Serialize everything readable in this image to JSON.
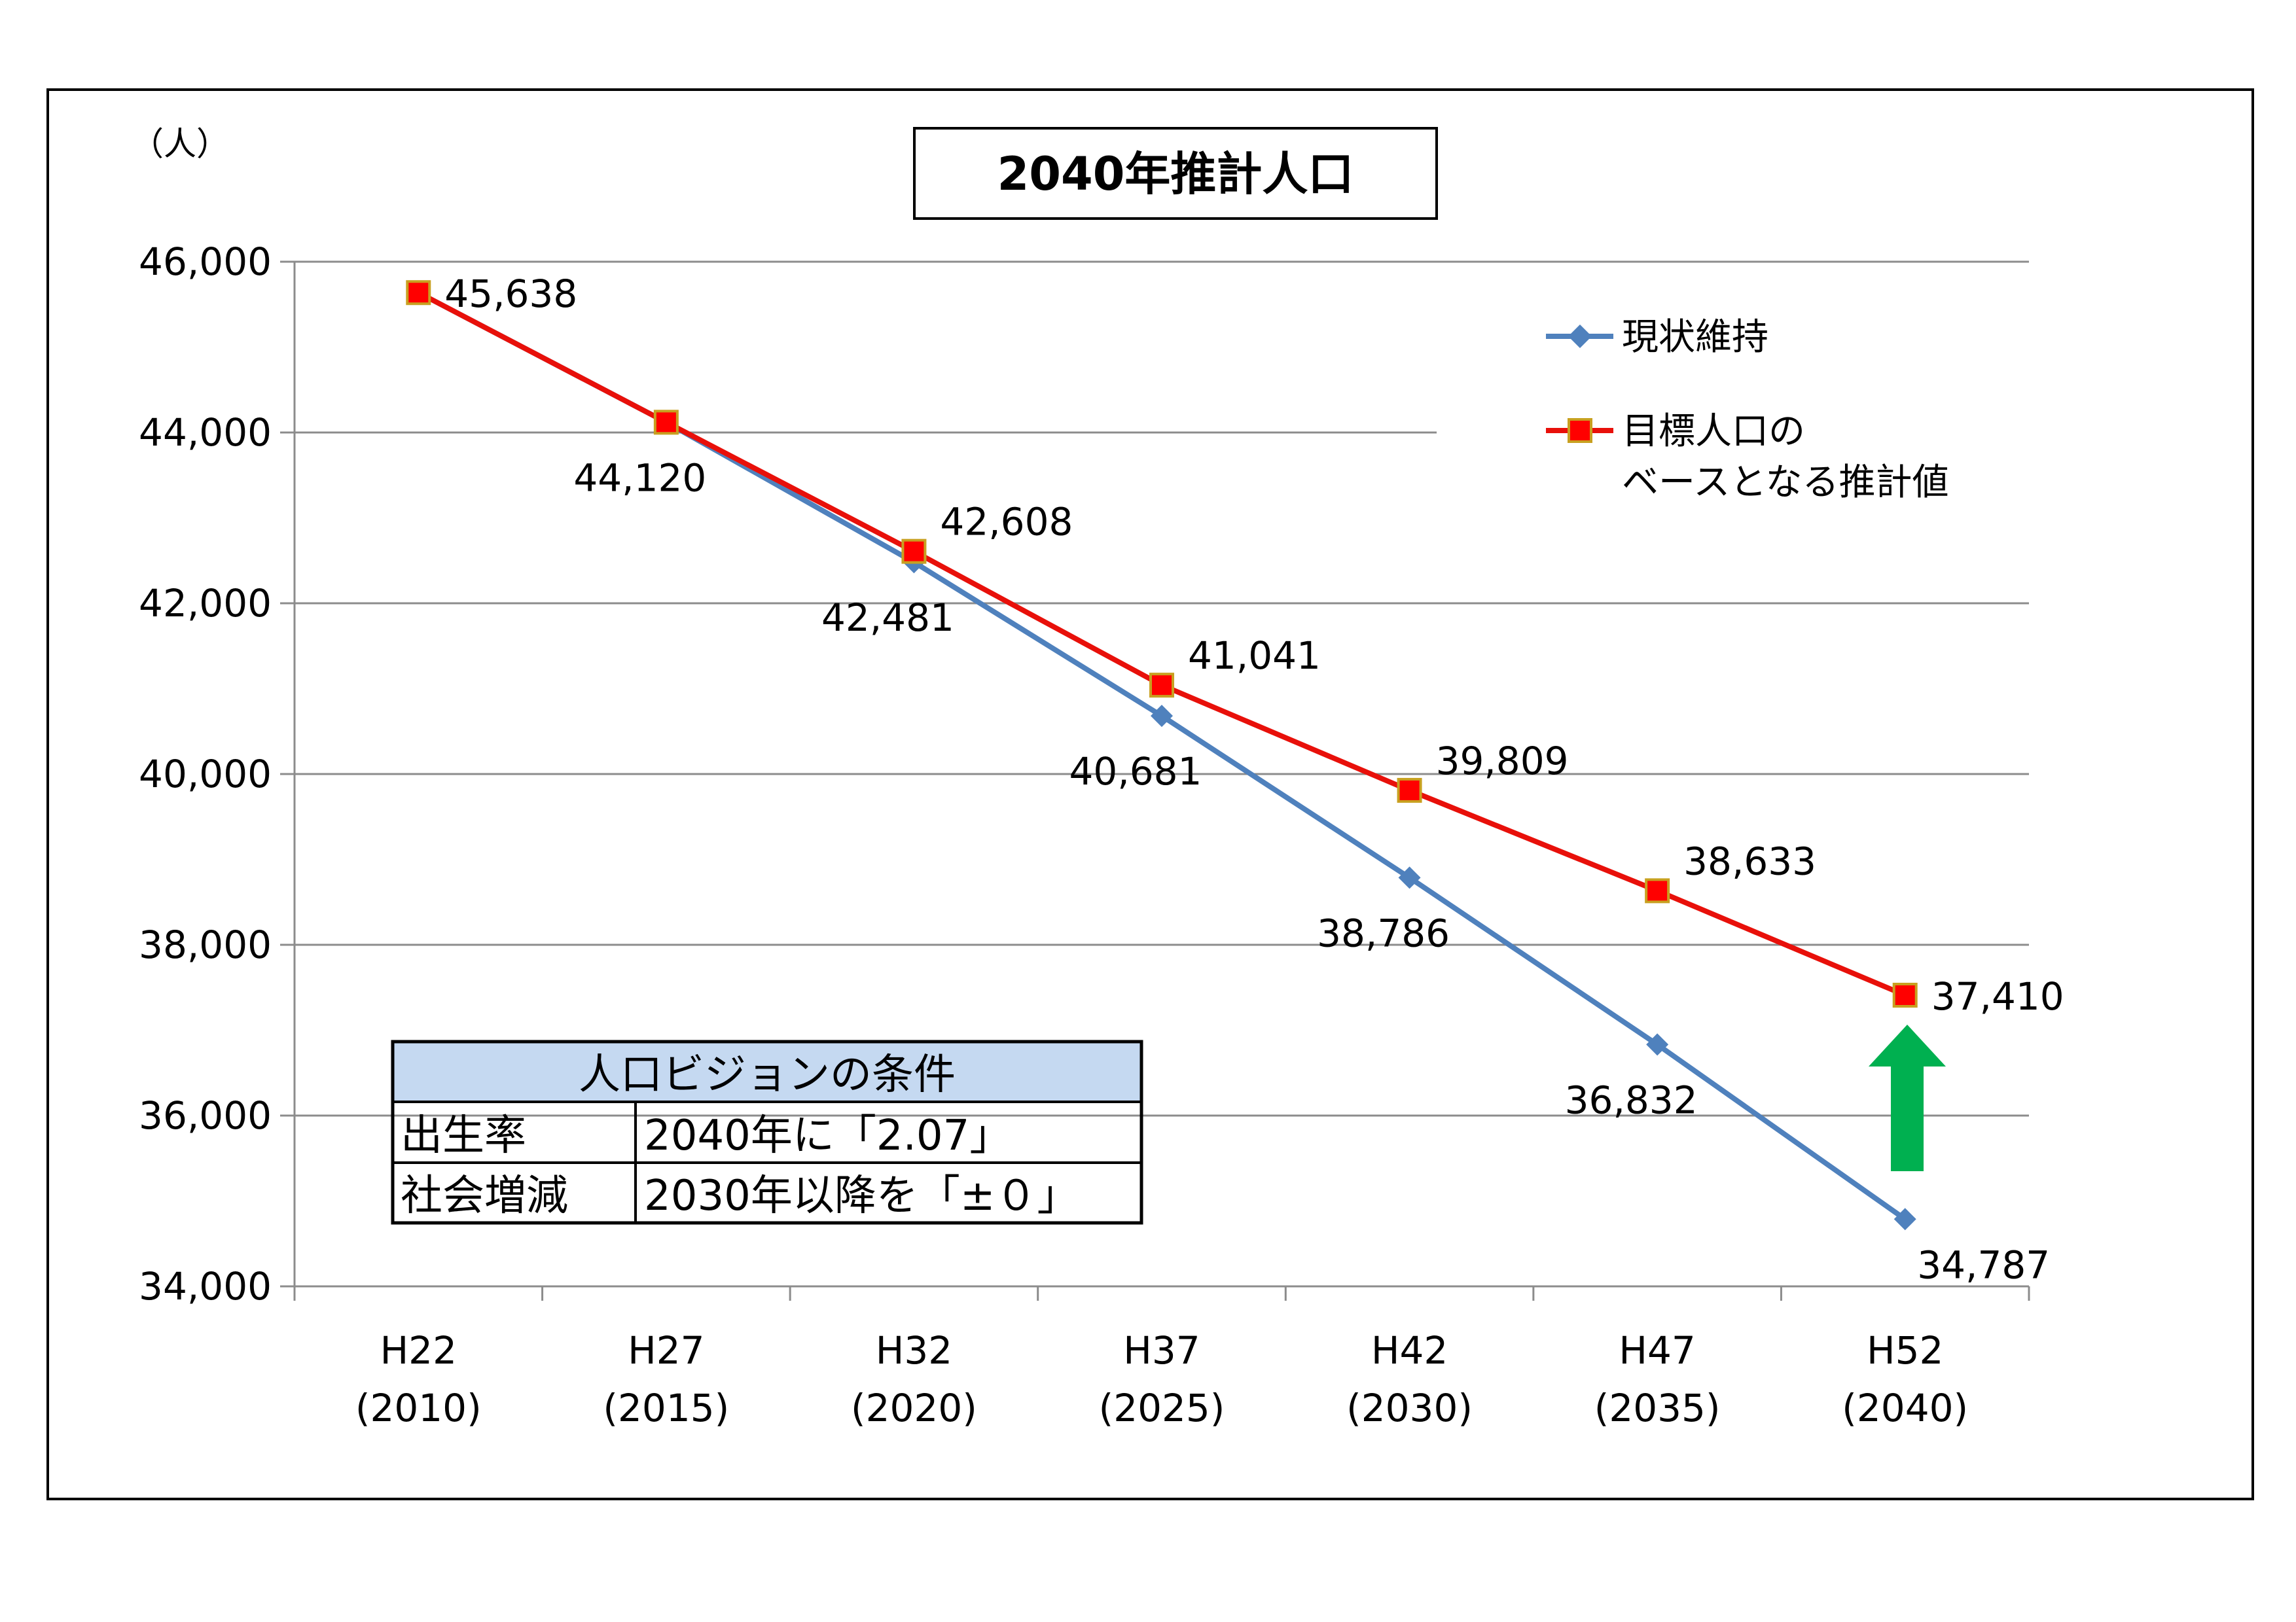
{
  "chart_data": {
    "type": "line",
    "title": "2040年推計人口",
    "ylabel": "（人）",
    "ylim": [
      34000,
      46000
    ],
    "yticks": [
      34000,
      36000,
      38000,
      40000,
      42000,
      44000,
      46000
    ],
    "ytick_labels": [
      "34,000",
      "36,000",
      "38,000",
      "40,000",
      "42,000",
      "44,000",
      "46,000"
    ],
    "categories": [
      [
        "H22",
        "(2010)"
      ],
      [
        "H27",
        "(2015)"
      ],
      [
        "H32",
        "(2020)"
      ],
      [
        "H37",
        "(2025)"
      ],
      [
        "H42",
        "(2030)"
      ],
      [
        "H47",
        "(2035)"
      ],
      [
        "H52",
        "(2040)"
      ]
    ],
    "series": [
      {
        "name": "現状維持",
        "color": "#4F81BD",
        "marker": "diamond",
        "values": [
          45638,
          44120,
          42481,
          40681,
          38786,
          36832,
          34787
        ],
        "labels": [
          "",
          "44,120",
          "42,481",
          "40,681",
          "38,786",
          "36,832",
          "34,787"
        ]
      },
      {
        "name": "目標人口の\nベースとなる推計値",
        "name_lines": [
          "目標人口の",
          "ベースとなる推計値"
        ],
        "color": "#E8100A",
        "marker_color": "#FF0000",
        "marker_edge": "#C8A020",
        "marker": "square",
        "values": [
          45638,
          44120,
          42608,
          41041,
          39809,
          38633,
          37410
        ],
        "labels": [
          "45,638",
          "",
          "42,608",
          "41,041",
          "39,809",
          "38,633",
          "37,410"
        ]
      }
    ],
    "grid": true,
    "legend": "top-right",
    "arrow_color": "#00B050"
  },
  "conditions": {
    "title": "人口ビジョンの条件",
    "header_color": "#C5D9F1",
    "rows": [
      {
        "label": "出生率",
        "value": "2040年に「2.07」"
      },
      {
        "label": "社会増減",
        "value": "2030年以降を「±０」"
      }
    ]
  }
}
